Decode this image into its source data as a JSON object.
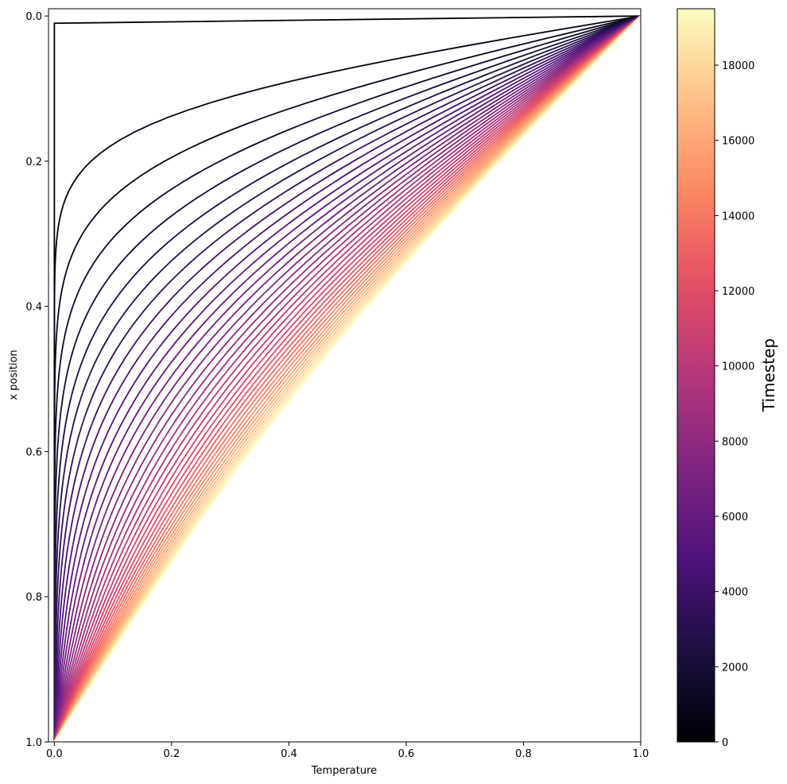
{
  "chart_data": {
    "type": "line",
    "title": "",
    "xlabel": "Temperature",
    "ylabel": "x position",
    "xlim": [
      -0.01,
      1.0
    ],
    "ylim": [
      1.0,
      -0.01
    ],
    "y_inverted": true,
    "xticks": [
      0.0,
      0.2,
      0.4,
      0.6,
      0.8,
      1.0
    ],
    "xtick_labels": [
      "0.0",
      "0.2",
      "0.4",
      "0.6",
      "0.8",
      "1.0"
    ],
    "yticks": [
      0.0,
      0.2,
      0.4,
      0.6,
      0.8,
      1.0
    ],
    "ytick_labels": [
      "0.0",
      "0.2",
      "0.4",
      "0.6",
      "0.8",
      "1.0"
    ],
    "grid": false,
    "colormap": "magma",
    "description_of_series": "Temperature profiles T(x) of 1-D heat diffusion with T=1 at x=0 and T=0 at x=1, one curve every 500 timesteps, colored by timestep",
    "timesteps": [
      0,
      500,
      1000,
      1500,
      2000,
      2500,
      3000,
      3500,
      4000,
      4500,
      5000,
      5500,
      6000,
      6500,
      7000,
      7500,
      8000,
      8500,
      9000,
      9500,
      10000,
      10500,
      11000,
      11500,
      12000,
      12500,
      13000,
      13500,
      14000,
      14500,
      15000,
      15500,
      16000,
      16500,
      17000,
      17500,
      18000,
      18500,
      19000,
      19500
    ],
    "colorbar": {
      "label": "Timestep",
      "range": [
        0,
        19500
      ],
      "ticks": [
        0,
        2000,
        4000,
        6000,
        8000,
        10000,
        12000,
        14000,
        16000,
        18000
      ],
      "tick_labels": [
        "0",
        "2000",
        "4000",
        "6000",
        "8000",
        "10000",
        "12000",
        "14000",
        "16000",
        "18000"
      ]
    }
  }
}
